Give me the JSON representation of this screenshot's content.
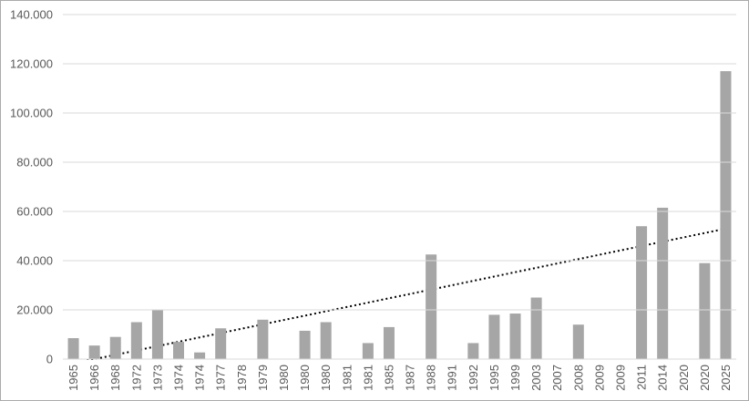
{
  "chart_data": {
    "type": "bar",
    "title": "",
    "xlabel": "",
    "ylabel": "",
    "categories": [
      "1965",
      "1966",
      "1968",
      "1972",
      "1973",
      "1974",
      "1974",
      "1977",
      "1978",
      "1979",
      "1980",
      "1980",
      "1980",
      "1981",
      "1981",
      "1985",
      "1987",
      "1988",
      "1991",
      "1992",
      "1995",
      "1999",
      "2003",
      "2007",
      "2008",
      "2009",
      "2009",
      "2011",
      "2014",
      "2020",
      "2020",
      "2025"
    ],
    "values": [
      8500,
      5500,
      9000,
      15000,
      20000,
      7000,
      2700,
      12500,
      null,
      16000,
      null,
      11500,
      15000,
      null,
      6500,
      13000,
      null,
      42500,
      null,
      6500,
      18000,
      18500,
      25000,
      null,
      14000,
      null,
      null,
      54000,
      61500,
      null,
      39000,
      117000
    ],
    "ylim": [
      0,
      140000
    ],
    "y_ticks": [
      {
        "value": 0,
        "label": "0"
      },
      {
        "value": 20000,
        "label": "20.000"
      },
      {
        "value": 40000,
        "label": "40.000"
      },
      {
        "value": 60000,
        "label": "60.000"
      },
      {
        "value": 80000,
        "label": "80.000"
      },
      {
        "value": 100000,
        "label": "100.000"
      },
      {
        "value": 120000,
        "label": "120.000"
      },
      {
        "value": 140000,
        "label": "140.000"
      }
    ],
    "x_tick_rotation_deg": -90,
    "grid": "horizontal",
    "legend": "none",
    "bar_color": "#a6a6a6",
    "gridline_color": "#d9d9d9",
    "tick_label_color": "#595959",
    "trendline": {
      "type": "linear",
      "style": "dotted",
      "color": "#000000",
      "value_at_first_category": -1800,
      "value_at_last_category": 53000
    }
  }
}
